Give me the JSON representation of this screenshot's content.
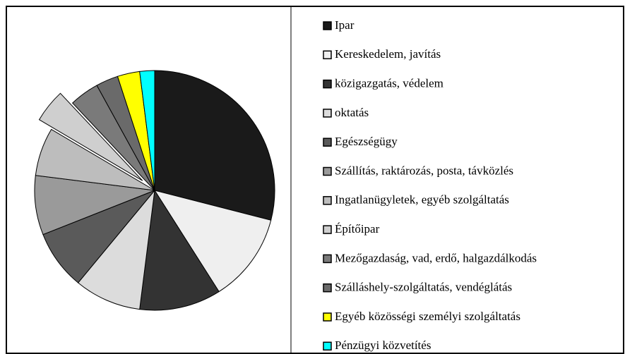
{
  "chart_data": {
    "type": "pie",
    "categories": [
      "Ipar",
      "Kereskedelem, javítás",
      "közigazgatás, védelem",
      "oktatás",
      "Egészségügy",
      "Szállítás, raktározás, posta, távközlés",
      "Ingatlanügyletek, egyéb szolgáltatás",
      "Építőipar",
      "Mezőgazdaság, vad, erdő, halgazdálkodás",
      "Szálláshely-szolgáltatás, vendéglátás",
      "Egyéb közösségi személyi szolgáltatás",
      "Pénzügyi közvetítés"
    ],
    "values": [
      29,
      12,
      11,
      9,
      8,
      8,
      6.5,
      4.5,
      4,
      3,
      3,
      2
    ],
    "colors": [
      "#1a1a1a",
      "#efefef",
      "#333333",
      "#dcdcdc",
      "#5a5a5a",
      "#9a9a9a",
      "#bdbdbd",
      "#cfcfcf",
      "#7a7a7a",
      "#6a6a6a",
      "#ffff00",
      "#00ffff"
    ],
    "exploded": [
      7
    ],
    "legend": "right"
  }
}
